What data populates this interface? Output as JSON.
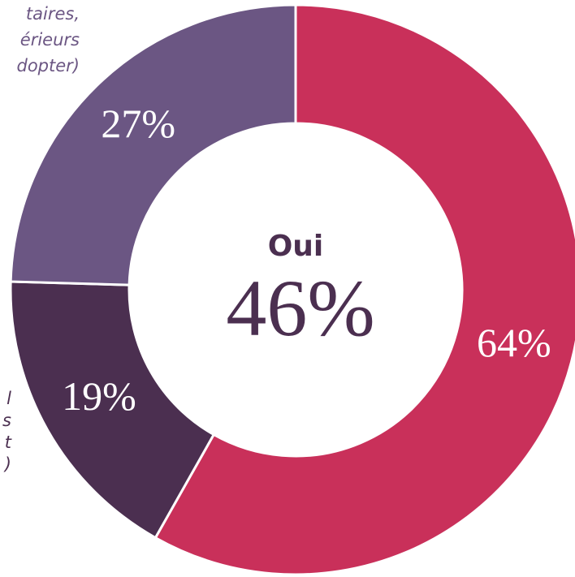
{
  "chart_data": {
    "type": "donut",
    "categories": [
      null,
      null,
      null
    ],
    "values": [
      64,
      19,
      27
    ],
    "value_labels": [
      "64%",
      "19%",
      "27%"
    ],
    "colors": [
      "#c9305a",
      "#4b2f50",
      "#6b5683"
    ],
    "center_title": "Oui",
    "center_text": "46%",
    "annotations": [
      {
        "lines": [
          "taires,",
          "érieurs",
          "dopter)"
        ],
        "color": "#6b5683"
      },
      {
        "lines": [
          "l",
          "s",
          "t",
          ")"
        ],
        "color": "#4b2f50"
      }
    ]
  }
}
